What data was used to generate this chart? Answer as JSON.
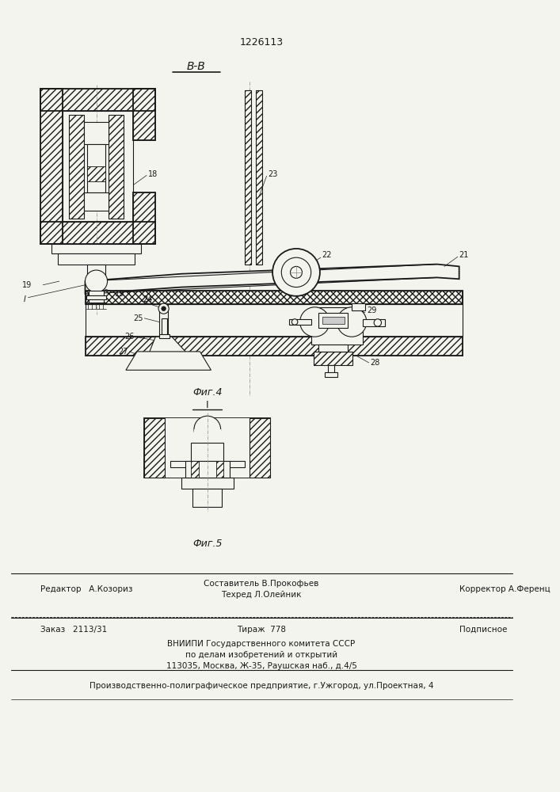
{
  "patent_number": "1226113",
  "section_label": "B-B",
  "fig4_label": "Фиг.4",
  "fig5_label": "Фиг.5",
  "bg_color": "#f4f4ef",
  "line_color": "#1a1a1a",
  "footer": {
    "col1_label": "Составитель В.Прокофьев",
    "col2_label": "Техред Л.Олейник",
    "col3_label": "Корректор А.Ференц",
    "editor_label": "Редактор   А.Козориз",
    "order_label": "Заказ   2113/31",
    "tirazh_label": "Тираж  778",
    "podpisnoe_label": "Подписное",
    "vniiipi_line1": "ВНИИПИ Государственного комитета СССР",
    "vniiipi_line2": "по делам изобретений и открытий",
    "vniiipi_line3": "113035, Москва, Ж-35, Раушская наб., д.4/5",
    "production_line": "Производственно-полиграфическое предприятие, г.Ужгород, ул.Проектная, 4"
  }
}
